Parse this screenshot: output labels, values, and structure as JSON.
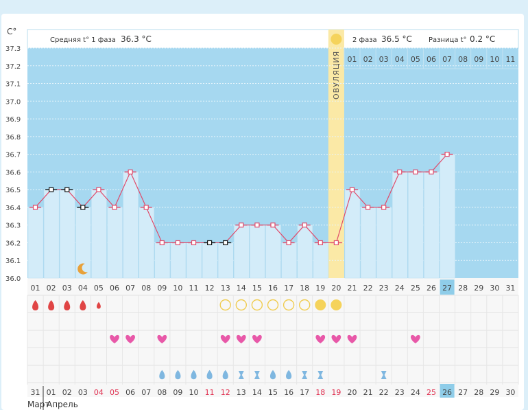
{
  "colors": {
    "plot_bg": "#a6d8f0",
    "bar_fill": "#d3ecf9",
    "line": "#e04a6a",
    "ovulation": "#fbe9a6",
    "today": "#8fcde9",
    "marker_outline": "#e04a6a"
  },
  "header": {
    "phase1_label": "Средняя t° 1 фаза",
    "phase1_value": "36.3 °C",
    "phase2_label": "2 фаза",
    "phase2_value": "36.5 °C",
    "diff_label": "Разница t°",
    "diff_value": "0.2 °C",
    "ovulation_label": "ОВУЛЯЦИЯ"
  },
  "bottom_labels": {
    "month1": "Март",
    "month2": "Апрель"
  },
  "chart_data": {
    "type": "line",
    "y_unit_label": "C°",
    "ylim": [
      36.0,
      37.3
    ],
    "y_ticks": [
      "37.3",
      "37.2",
      "37.1",
      "37.0",
      "36.9",
      "36.8",
      "36.7",
      "36.6",
      "36.5",
      "36.4",
      "36.3",
      "36.2",
      "36.1",
      "36.0"
    ],
    "cycle_days": [
      "01",
      "02",
      "03",
      "04",
      "05",
      "06",
      "07",
      "08",
      "09",
      "10",
      "11",
      "12",
      "13",
      "14",
      "15",
      "16",
      "17",
      "18",
      "19",
      "20",
      "21",
      "22",
      "23",
      "24",
      "25",
      "26",
      "27",
      "28",
      "29",
      "30",
      "31"
    ],
    "phase2_days": [
      "01",
      "02",
      "03",
      "04",
      "05",
      "06",
      "07",
      "08",
      "09",
      "10",
      "11"
    ],
    "calendar_dates": [
      "31",
      "01",
      "02",
      "03",
      "04",
      "05",
      "06",
      "07",
      "08",
      "09",
      "10",
      "11",
      "12",
      "13",
      "14",
      "15",
      "16",
      "17",
      "18",
      "19",
      "20",
      "21",
      "22",
      "23",
      "24",
      "25",
      "26",
      "27",
      "28",
      "29",
      "30"
    ],
    "calendar_red_dates": [
      "04",
      "05",
      "11",
      "12",
      "18",
      "19",
      "25"
    ],
    "temperatures": [
      36.4,
      36.5,
      36.5,
      36.4,
      36.5,
      36.4,
      36.6,
      36.4,
      36.2,
      36.2,
      36.2,
      36.2,
      36.2,
      36.3,
      36.3,
      36.3,
      36.2,
      36.3,
      36.2,
      36.2,
      36.5,
      36.4,
      36.4,
      36.6,
      36.6,
      36.6,
      36.7
    ],
    "excluded_days": [
      2,
      3,
      4,
      12,
      13
    ],
    "ovulation_day": 20,
    "current_day": 27,
    "menstruation": {
      "large": [
        1,
        2,
        3,
        4
      ],
      "small": [
        5
      ]
    },
    "moon_day": 4,
    "ovulation_test": {
      "negative": [
        13,
        14,
        15,
        16,
        17,
        18
      ],
      "positive": [
        19,
        20
      ]
    },
    "sex_days": [
      6,
      7,
      9,
      13,
      14,
      15,
      19,
      20,
      21,
      25
    ],
    "discharge": {
      "drop": [
        9,
        10,
        11,
        12,
        13,
        16,
        17
      ],
      "hourglass": [
        14,
        15,
        18,
        19,
        23
      ]
    }
  }
}
